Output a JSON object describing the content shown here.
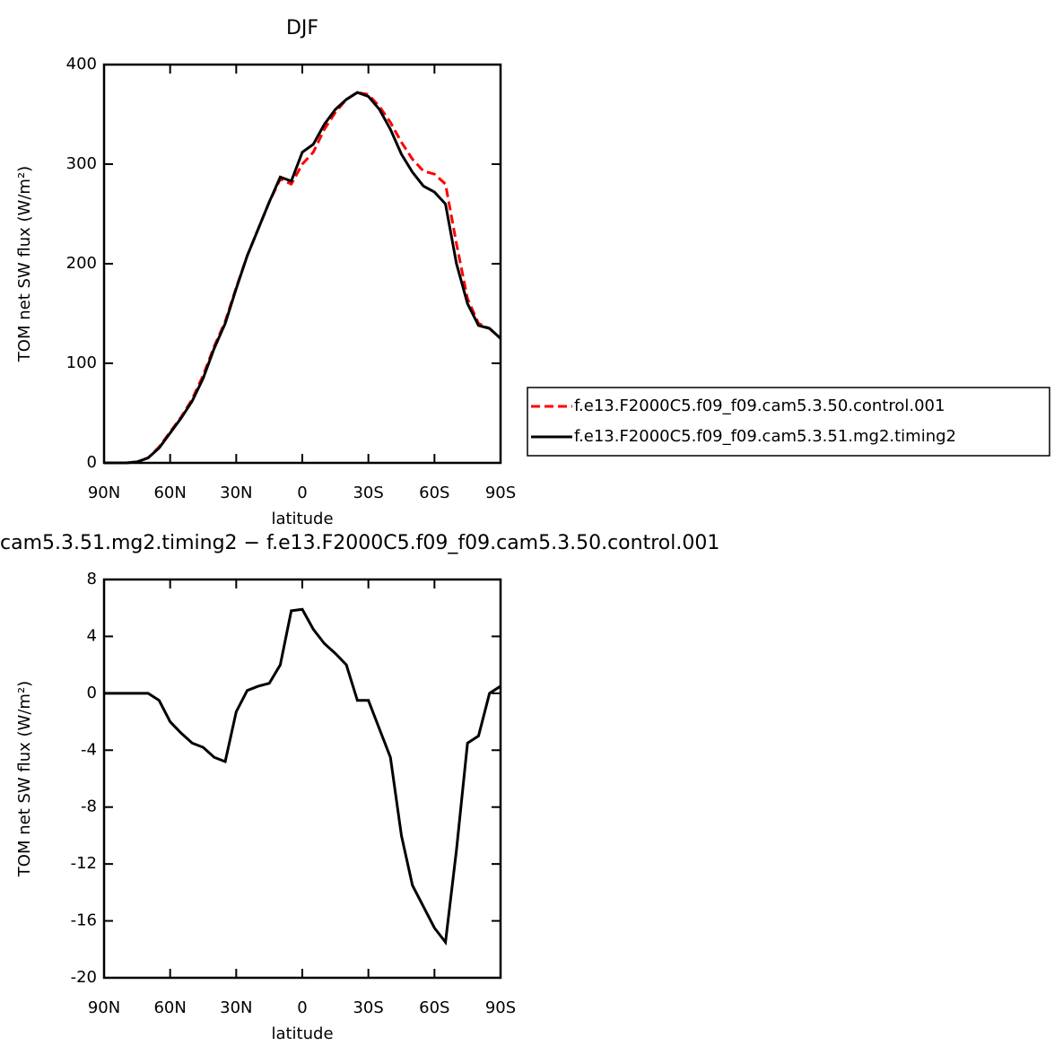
{
  "chart_data": [
    {
      "type": "line",
      "title": "DJF",
      "xlabel": "latitude",
      "ylabel": "TOM net SW flux (W/m²)",
      "x": [
        90,
        85,
        80,
        75,
        70,
        65,
        60,
        55,
        50,
        45,
        40,
        35,
        30,
        25,
        20,
        15,
        10,
        5,
        0,
        -5,
        -10,
        -15,
        -20,
        -25,
        -30,
        -35,
        -40,
        -45,
        -50,
        -55,
        -60,
        -65,
        -70,
        -75,
        -80,
        -85,
        -90
      ],
      "xlim": [
        90,
        -90
      ],
      "xticks": [
        {
          "value": 90,
          "label": "90N"
        },
        {
          "value": 60,
          "label": "60N"
        },
        {
          "value": 30,
          "label": "30N"
        },
        0,
        {
          "value": -30,
          "label": "30S"
        },
        {
          "value": -60,
          "label": "60S"
        },
        {
          "value": -90,
          "label": "90S"
        }
      ],
      "ylim": [
        0,
        400
      ],
      "yticks": [
        0,
        100,
        200,
        300,
        400
      ],
      "legend": "right",
      "series": [
        {
          "name": "f.e13.F2000C5.f09_f09.cam5.3.50.control.001",
          "color": "#ff0000",
          "linestyle": "dashed",
          "values": [
            0,
            0,
            0,
            1,
            5,
            16,
            31,
            46,
            64,
            88,
            117,
            142,
            176,
            208,
            235,
            262,
            285,
            280,
            300,
            312,
            335,
            352,
            365,
            372,
            370,
            358,
            342,
            322,
            305,
            293,
            290,
            280,
            220,
            165,
            140,
            135,
            125
          ]
        },
        {
          "name": "f.e13.F2000C5.f09_f09.cam5.3.51.mg2.timing2",
          "color": "#000000",
          "linestyle": "solid",
          "values": [
            0,
            0,
            0,
            1,
            5,
            15,
            30,
            45,
            62,
            85,
            115,
            140,
            175,
            208,
            235,
            262,
            287,
            283,
            312,
            320,
            340,
            355,
            365,
            372,
            368,
            355,
            335,
            310,
            292,
            278,
            272,
            260,
            200,
            160,
            138,
            135,
            125
          ]
        }
      ]
    },
    {
      "type": "line",
      "title": "cam5.3.51.mg2.timing2 − f.e13.F2000C5.f09_f09.cam5.3.50.control.001",
      "xlabel": "latitude",
      "ylabel": "TOM net SW flux (W/m²)",
      "x": [
        90,
        85,
        80,
        75,
        70,
        65,
        60,
        55,
        50,
        45,
        40,
        35,
        30,
        25,
        20,
        15,
        10,
        5,
        0,
        -5,
        -10,
        -15,
        -20,
        -25,
        -30,
        -35,
        -40,
        -45,
        -50,
        -55,
        -60,
        -65,
        -70,
        -75,
        -80,
        -85,
        -90
      ],
      "xlim": [
        90,
        -90
      ],
      "xticks": [
        {
          "value": 90,
          "label": "90N"
        },
        {
          "value": 60,
          "label": "60N"
        },
        {
          "value": 30,
          "label": "30N"
        },
        0,
        {
          "value": -30,
          "label": "30S"
        },
        {
          "value": -60,
          "label": "60S"
        },
        {
          "value": -90,
          "label": "90S"
        }
      ],
      "ylim": [
        -20,
        8
      ],
      "yticks": [
        -20,
        -16,
        -12,
        -8,
        -4,
        0,
        4,
        8
      ],
      "series": [
        {
          "color": "#000000",
          "linestyle": "solid",
          "values": [
            0,
            0,
            0,
            0,
            0,
            -0.5,
            -2,
            -2.8,
            -3.5,
            -3.8,
            -4.5,
            -4.8,
            -1.3,
            0.2,
            0.5,
            0.7,
            2,
            5.8,
            5.9,
            4.5,
            3.5,
            2.8,
            2,
            -0.5,
            -0.5,
            -2.5,
            -4.5,
            -10,
            -13.5,
            -15,
            -16.5,
            -17.5,
            -11,
            -3.5,
            -3,
            0,
            0.5
          ]
        }
      ]
    }
  ]
}
